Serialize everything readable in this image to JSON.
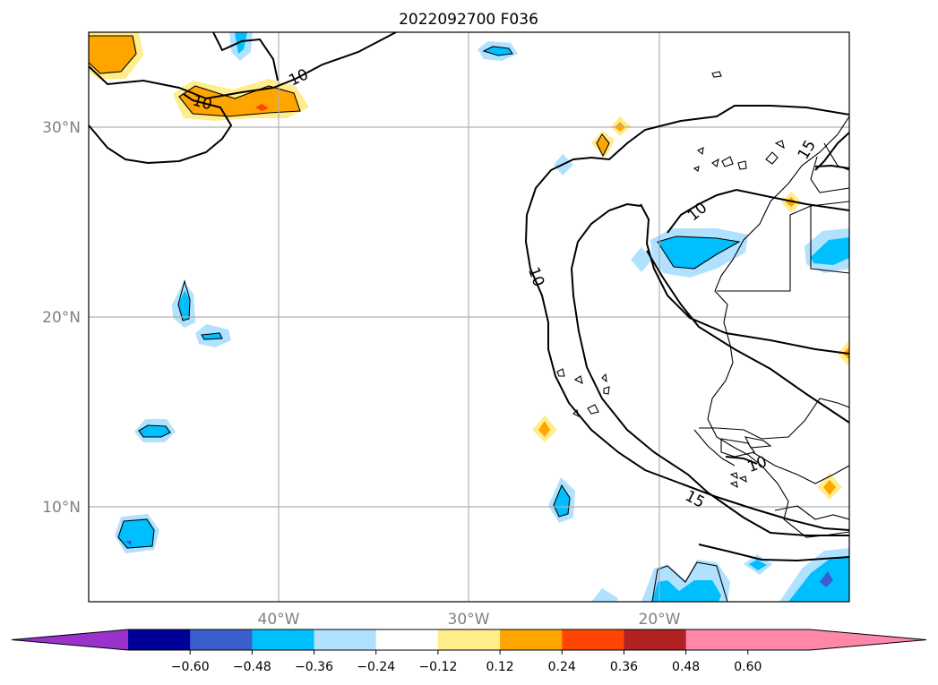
{
  "title": "2022092700 F036",
  "lat_labels": [
    "30°N",
    "20°N",
    "10°N"
  ],
  "lon_labels": [
    "40°W",
    "30°W",
    "20°W"
  ],
  "contour_labels": [
    "10",
    "10",
    "10",
    "10",
    "15",
    "15",
    "10"
  ],
  "colorbar": {
    "tick_labels": [
      "−0.60",
      "−0.48",
      "−0.36",
      "−0.24",
      "−0.12",
      "0.12",
      "0.24",
      "0.36",
      "0.48",
      "0.60"
    ],
    "colors": [
      "#9933cc",
      "#000099",
      "#3a5fcd",
      "#00bfff",
      "#b0e2ff",
      "#ffffff",
      "#ffec8b",
      "#ffa500",
      "#ff4500",
      "#b22222",
      "#ff88aa",
      "#ff88aa"
    ]
  },
  "colors": {
    "pos_light": "#ffec8b",
    "pos_mid": "#ffa500",
    "pos_strong": "#ff4500",
    "neg_light": "#b0e2ff",
    "neg_mid": "#00bfff",
    "neg_strong": "#3a5fcd"
  }
}
